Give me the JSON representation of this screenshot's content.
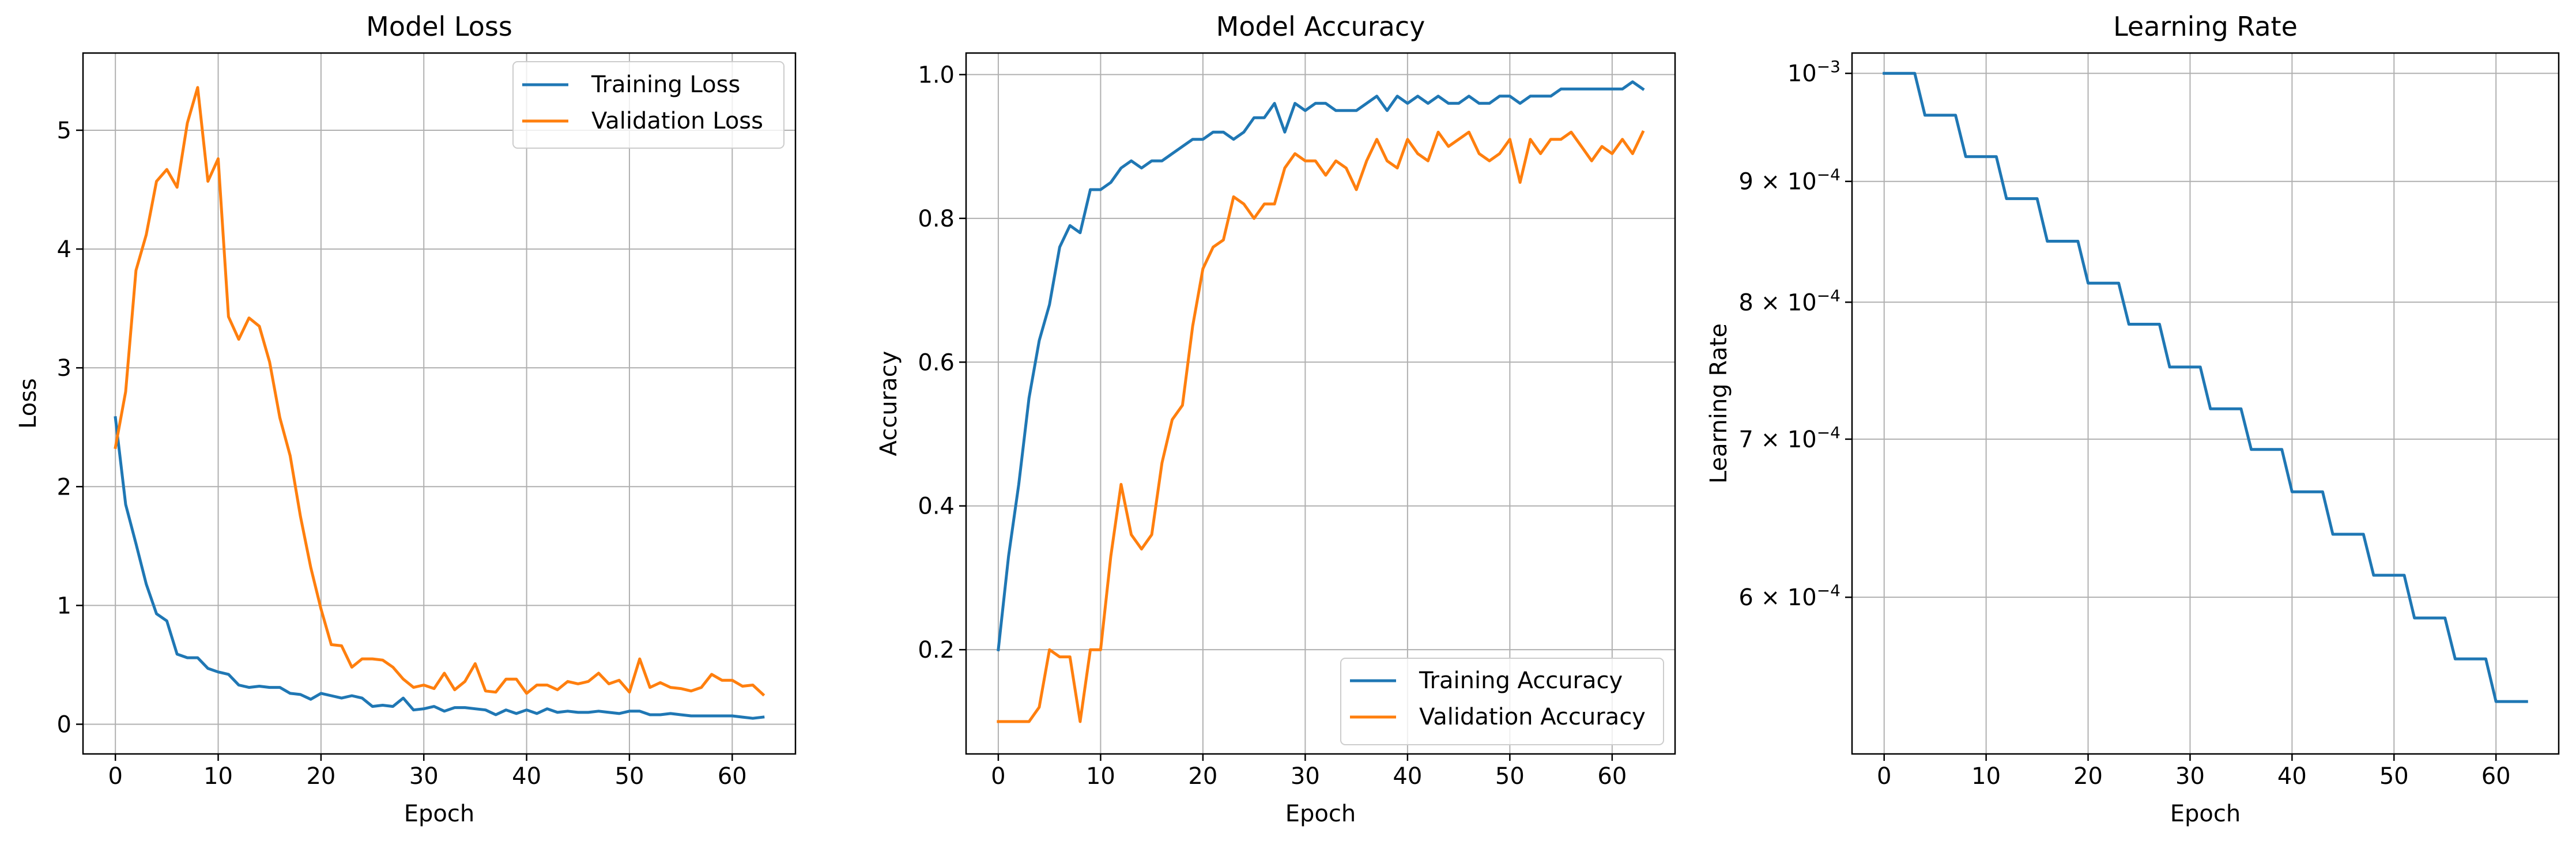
{
  "colors": {
    "training": "#1f77b4",
    "validation": "#ff7f0e",
    "grid": "#b0b0b0"
  },
  "chart_data": [
    {
      "type": "line",
      "title": "Model Loss",
      "xlabel": "Epoch",
      "ylabel": "Loss",
      "xlim": [
        -3.15,
        66.15
      ],
      "ylim": [
        -0.25,
        5.65
      ],
      "xticks": [
        0,
        10,
        20,
        30,
        40,
        50,
        60
      ],
      "xtick_labels": [
        "0",
        "10",
        "20",
        "30",
        "40",
        "50",
        "60"
      ],
      "yticks": [
        0,
        1,
        2,
        3,
        4,
        5
      ],
      "ytick_labels": [
        "0",
        "1",
        "2",
        "3",
        "4",
        "5"
      ],
      "grid": true,
      "legend": "upper right",
      "series": [
        {
          "name": "Training Loss",
          "color": "#1f77b4",
          "x": [
            0,
            1,
            2,
            3,
            4,
            5,
            6,
            7,
            8,
            9,
            10,
            11,
            12,
            13,
            14,
            15,
            16,
            17,
            18,
            19,
            20,
            21,
            22,
            23,
            24,
            25,
            26,
            27,
            28,
            29,
            30,
            31,
            32,
            33,
            34,
            35,
            36,
            37,
            38,
            39,
            40,
            41,
            42,
            43,
            44,
            45,
            46,
            47,
            48,
            49,
            50,
            51,
            52,
            53,
            54,
            55,
            56,
            57,
            58,
            59,
            60,
            61,
            62,
            63
          ],
          "y": [
            2.58,
            1.85,
            1.52,
            1.18,
            0.93,
            0.87,
            0.59,
            0.56,
            0.56,
            0.47,
            0.44,
            0.42,
            0.33,
            0.31,
            0.32,
            0.31,
            0.31,
            0.26,
            0.25,
            0.21,
            0.26,
            0.24,
            0.22,
            0.24,
            0.22,
            0.15,
            0.16,
            0.15,
            0.22,
            0.12,
            0.13,
            0.15,
            0.11,
            0.14,
            0.14,
            0.13,
            0.12,
            0.08,
            0.12,
            0.09,
            0.12,
            0.09,
            0.13,
            0.1,
            0.11,
            0.1,
            0.1,
            0.11,
            0.1,
            0.09,
            0.11,
            0.11,
            0.08,
            0.08,
            0.09,
            0.08,
            0.07,
            0.07,
            0.07,
            0.07,
            0.07,
            0.06,
            0.05,
            0.06
          ]
        },
        {
          "name": "Validation Loss",
          "color": "#ff7f0e",
          "x": [
            0,
            1,
            2,
            3,
            4,
            5,
            6,
            7,
            8,
            9,
            10,
            11,
            12,
            13,
            14,
            15,
            16,
            17,
            18,
            19,
            20,
            21,
            22,
            23,
            24,
            25,
            26,
            27,
            28,
            29,
            30,
            31,
            32,
            33,
            34,
            35,
            36,
            37,
            38,
            39,
            40,
            41,
            42,
            43,
            44,
            45,
            46,
            47,
            48,
            49,
            50,
            51,
            52,
            53,
            54,
            55,
            56,
            57,
            58,
            59,
            60,
            61,
            62,
            63
          ],
          "y": [
            2.33,
            2.8,
            3.82,
            4.12,
            4.57,
            4.67,
            4.52,
            5.06,
            5.36,
            4.57,
            4.76,
            3.43,
            3.24,
            3.42,
            3.35,
            3.05,
            2.58,
            2.26,
            1.75,
            1.32,
            0.97,
            0.67,
            0.66,
            0.48,
            0.55,
            0.55,
            0.54,
            0.48,
            0.38,
            0.31,
            0.33,
            0.3,
            0.43,
            0.29,
            0.36,
            0.51,
            0.28,
            0.27,
            0.38,
            0.38,
            0.26,
            0.33,
            0.33,
            0.29,
            0.36,
            0.34,
            0.36,
            0.43,
            0.34,
            0.37,
            0.27,
            0.55,
            0.31,
            0.35,
            0.31,
            0.3,
            0.28,
            0.31,
            0.42,
            0.37,
            0.37,
            0.32,
            0.33,
            0.25
          ]
        }
      ]
    },
    {
      "type": "line",
      "title": "Model Accuracy",
      "xlabel": "Epoch",
      "ylabel": "Accuracy",
      "xlim": [
        -3.15,
        66.15
      ],
      "ylim": [
        0.055,
        1.03
      ],
      "xticks": [
        0,
        10,
        20,
        30,
        40,
        50,
        60
      ],
      "xtick_labels": [
        "0",
        "10",
        "20",
        "30",
        "40",
        "50",
        "60"
      ],
      "yticks": [
        0.2,
        0.4,
        0.6,
        0.8,
        1.0
      ],
      "ytick_labels": [
        "0.2",
        "0.4",
        "0.6",
        "0.8",
        "1.0"
      ],
      "grid": true,
      "legend": "lower right",
      "series": [
        {
          "name": "Training Accuracy",
          "color": "#1f77b4",
          "x": [
            0,
            1,
            2,
            3,
            4,
            5,
            6,
            7,
            8,
            9,
            10,
            11,
            12,
            13,
            14,
            15,
            16,
            17,
            18,
            19,
            20,
            21,
            22,
            23,
            24,
            25,
            26,
            27,
            28,
            29,
            30,
            31,
            32,
            33,
            34,
            35,
            36,
            37,
            38,
            39,
            40,
            41,
            42,
            43,
            44,
            45,
            46,
            47,
            48,
            49,
            50,
            51,
            52,
            53,
            54,
            55,
            56,
            57,
            58,
            59,
            60,
            61,
            62,
            63
          ],
          "y": [
            0.2,
            0.33,
            0.43,
            0.55,
            0.63,
            0.68,
            0.76,
            0.79,
            0.78,
            0.84,
            0.84,
            0.85,
            0.87,
            0.88,
            0.87,
            0.88,
            0.88,
            0.89,
            0.9,
            0.91,
            0.91,
            0.92,
            0.92,
            0.91,
            0.92,
            0.94,
            0.94,
            0.96,
            0.92,
            0.96,
            0.95,
            0.96,
            0.96,
            0.95,
            0.95,
            0.95,
            0.96,
            0.97,
            0.95,
            0.97,
            0.96,
            0.97,
            0.96,
            0.97,
            0.96,
            0.96,
            0.97,
            0.96,
            0.96,
            0.97,
            0.97,
            0.96,
            0.97,
            0.97,
            0.97,
            0.98,
            0.98,
            0.98,
            0.98,
            0.98,
            0.98,
            0.98,
            0.99,
            0.98
          ]
        },
        {
          "name": "Validation Accuracy",
          "color": "#ff7f0e",
          "x": [
            0,
            1,
            2,
            3,
            4,
            5,
            6,
            7,
            8,
            9,
            10,
            11,
            12,
            13,
            14,
            15,
            16,
            17,
            18,
            19,
            20,
            21,
            22,
            23,
            24,
            25,
            26,
            27,
            28,
            29,
            30,
            31,
            32,
            33,
            34,
            35,
            36,
            37,
            38,
            39,
            40,
            41,
            42,
            43,
            44,
            45,
            46,
            47,
            48,
            49,
            50,
            51,
            52,
            53,
            54,
            55,
            56,
            57,
            58,
            59,
            60,
            61,
            62,
            63
          ],
          "y": [
            0.1,
            0.1,
            0.1,
            0.1,
            0.12,
            0.2,
            0.19,
            0.19,
            0.1,
            0.2,
            0.2,
            0.33,
            0.43,
            0.36,
            0.34,
            0.36,
            0.46,
            0.52,
            0.54,
            0.65,
            0.73,
            0.76,
            0.77,
            0.83,
            0.82,
            0.8,
            0.82,
            0.82,
            0.87,
            0.89,
            0.88,
            0.88,
            0.86,
            0.88,
            0.87,
            0.84,
            0.88,
            0.91,
            0.88,
            0.87,
            0.91,
            0.89,
            0.88,
            0.92,
            0.9,
            0.91,
            0.92,
            0.89,
            0.88,
            0.89,
            0.91,
            0.85,
            0.91,
            0.89,
            0.91,
            0.91,
            0.92,
            0.9,
            0.88,
            0.9,
            0.89,
            0.91,
            0.89,
            0.92
          ]
        }
      ]
    },
    {
      "type": "line",
      "title": "Learning Rate",
      "xlabel": "Epoch",
      "ylabel": "Learning Rate",
      "yscale": "log",
      "xlim": [
        -3.15,
        66.15
      ],
      "ylim": [
        0.000515,
        0.00102
      ],
      "xticks": [
        0,
        10,
        20,
        30,
        40,
        50,
        60
      ],
      "xtick_labels": [
        "0",
        "10",
        "20",
        "30",
        "40",
        "50",
        "60"
      ],
      "yticks": [
        0.0006,
        0.0007,
        0.0008,
        0.0009,
        0.001
      ],
      "ytick_mantissas": [
        "6",
        "7",
        "8",
        "9",
        "10"
      ],
      "ytick_exponents": [
        "−4",
        "−4",
        "−4",
        "−4",
        "−3"
      ],
      "grid": true,
      "legend": "none",
      "series": [
        {
          "color": "#1f77b4",
          "x": [
            0,
            1,
            2,
            3,
            4,
            5,
            6,
            7,
            8,
            9,
            10,
            11,
            12,
            13,
            14,
            15,
            16,
            17,
            18,
            19,
            20,
            21,
            22,
            23,
            24,
            25,
            26,
            27,
            28,
            29,
            30,
            31,
            32,
            33,
            34,
            35,
            36,
            37,
            38,
            39,
            40,
            41,
            42,
            43,
            44,
            45,
            46,
            47,
            48,
            49,
            50,
            51,
            52,
            53,
            54,
            55,
            56,
            57,
            58,
            59,
            60,
            61,
            62,
            63
          ],
          "y": [
            0.001,
            0.001,
            0.001,
            0.001,
            0.00096,
            0.00096,
            0.00096,
            0.00096,
            0.000922,
            0.000922,
            0.000922,
            0.000922,
            0.000885,
            0.000885,
            0.000885,
            0.000885,
            0.000849,
            0.000849,
            0.000849,
            0.000849,
            0.000815,
            0.000815,
            0.000815,
            0.000815,
            0.000783,
            0.000783,
            0.000783,
            0.000783,
            0.000751,
            0.000751,
            0.000751,
            0.000751,
            0.000721,
            0.000721,
            0.000721,
            0.000721,
            0.000693,
            0.000693,
            0.000693,
            0.000693,
            0.000665,
            0.000665,
            0.000665,
            0.000665,
            0.000638,
            0.000638,
            0.000638,
            0.000638,
            0.000613,
            0.000613,
            0.000613,
            0.000613,
            0.000588,
            0.000588,
            0.000588,
            0.000588,
            0.000565,
            0.000565,
            0.000565,
            0.000565,
            0.000542,
            0.000542,
            0.000542,
            0.000542
          ]
        }
      ]
    }
  ]
}
